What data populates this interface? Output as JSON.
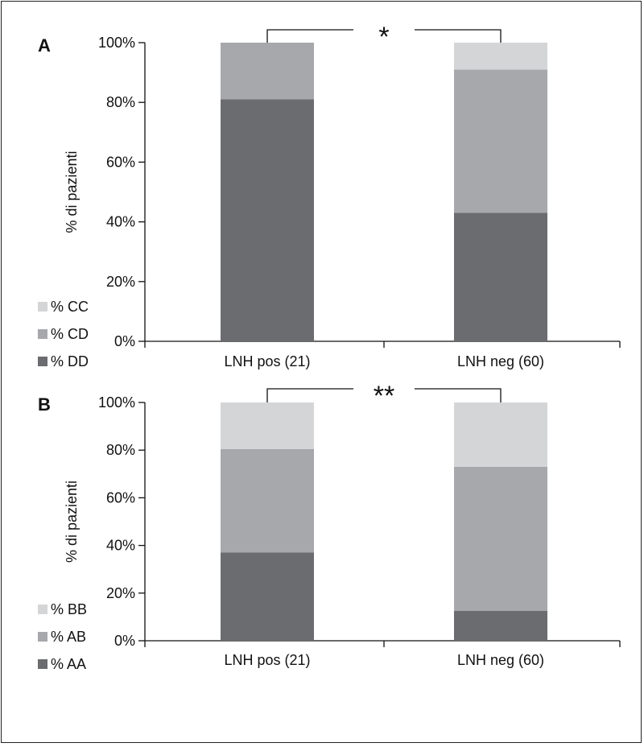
{
  "chart_data": [
    {
      "type": "bar",
      "stacked": true,
      "panel": "A",
      "ylabel": "% di pazienti",
      "ylim": [
        0,
        100
      ],
      "yticks": [
        "0%",
        "20%",
        "40%",
        "60%",
        "80%",
        "100%"
      ],
      "categories": [
        "LNH pos (21)",
        "LNH neg (60)"
      ],
      "series": [
        {
          "name": "% DD",
          "values": [
            81,
            43
          ],
          "color": "#6b6c70"
        },
        {
          "name": "% CD",
          "values": [
            19,
            48
          ],
          "color": "#a7a8ab"
        },
        {
          "name": "% CC",
          "values": [
            0,
            9
          ],
          "color": "#d4d5d7"
        }
      ],
      "legend_order": [
        "% CC",
        "% CD",
        "% DD"
      ],
      "significance": "*"
    },
    {
      "type": "bar",
      "stacked": true,
      "panel": "B",
      "ylabel": "% di pazienti",
      "ylim": [
        0,
        100
      ],
      "yticks": [
        "0%",
        "20%",
        "40%",
        "60%",
        "80%",
        "100%"
      ],
      "categories": [
        "LNH pos (21)",
        "LNH neg (60)"
      ],
      "series": [
        {
          "name": "% AA",
          "values": [
            37,
            12.5
          ],
          "color": "#6b6c70"
        },
        {
          "name": "% AB",
          "values": [
            43.5,
            60.5
          ],
          "color": "#a7a8ab"
        },
        {
          "name": "% BB",
          "values": [
            19.5,
            27
          ],
          "color": "#d4d5d7"
        }
      ],
      "legend_order": [
        "% BB",
        "% AB",
        "% AA"
      ],
      "significance": "**"
    }
  ]
}
